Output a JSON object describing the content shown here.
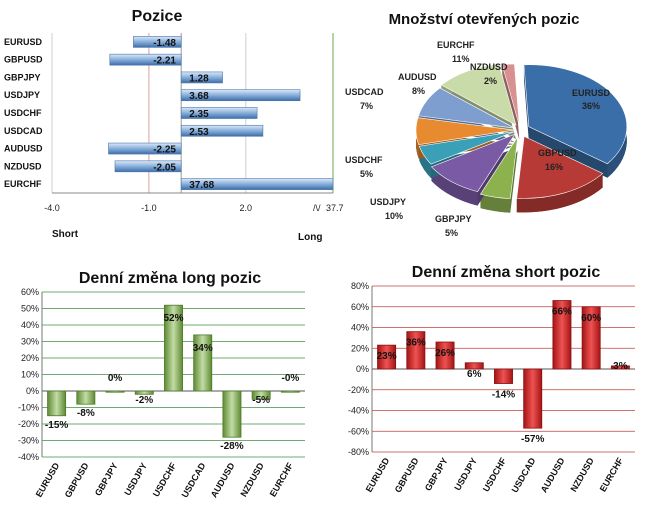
{
  "chart_data": [
    {
      "type": "bar",
      "orientation": "horizontal",
      "title": "Pozice",
      "categories": [
        "EURUSD",
        "GBPUSD",
        "GBPJPY",
        "USDJPY",
        "USDCHF",
        "USDCAD",
        "AUDUSD",
        "NZDUSD",
        "EURCHF"
      ],
      "values": [
        -1.48,
        -2.21,
        1.28,
        3.68,
        2.35,
        2.53,
        -2.25,
        -2.05,
        37.68
      ],
      "value_labels": [
        "-1.48",
        "-2.21",
        "1.28",
        "3.68",
        "2.35",
        "2.53",
        "-2.25",
        "-2.05",
        "37.68"
      ],
      "x_ticks": [
        "-4.0",
        "-1.0",
        "2.0"
      ],
      "axis_break_label": "37.7",
      "xlim": [
        -4.0,
        4.7
      ],
      "left_label": "Short",
      "right_label": "Long",
      "colors": {
        "bar": "#8fb4df",
        "bar_dark": "#3d6ea8"
      }
    },
    {
      "type": "pie",
      "title": "Množství otevřených pozic",
      "slices": [
        {
          "name": "EURUSD",
          "value": 36,
          "label": "36%",
          "color": "#3a6ea8"
        },
        {
          "name": "GBPUSD",
          "value": 16,
          "label": "16%",
          "color": "#b83a36"
        },
        {
          "name": "GBPJPY",
          "value": 5,
          "label": "5%",
          "color": "#8cb24e"
        },
        {
          "name": "USDJPY",
          "value": 10,
          "label": "10%",
          "color": "#7a5aa4"
        },
        {
          "name": "USDCHF",
          "value": 5,
          "label": "5%",
          "color": "#3aa0b8"
        },
        {
          "name": "USDCAD",
          "value": 7,
          "label": "7%",
          "color": "#e88a30"
        },
        {
          "name": "AUDUSD",
          "value": 8,
          "label": "8%",
          "color": "#7f9ed0"
        },
        {
          "name": "EURCHF",
          "value": 11,
          "label": "11%",
          "color": "#c9dba8"
        },
        {
          "name": "NZDUSD",
          "value": 2,
          "label": "2%",
          "color": "#d89090"
        }
      ]
    },
    {
      "type": "bar",
      "title": "Denní změna long pozic",
      "categories": [
        "EURUSD",
        "GBPUSD",
        "GBPJPY",
        "USDJPY",
        "USDCHF",
        "USDCAD",
        "AUDUSD",
        "NZDUSD",
        "EURCHF"
      ],
      "values": [
        -15,
        -8,
        0,
        -2,
        52,
        34,
        -28,
        -5,
        0
      ],
      "value_labels": [
        "-15%",
        "-8%",
        "0%",
        "-2%",
        "52%",
        "34%",
        "-28%",
        "-5%",
        "-0%"
      ],
      "y_ticks": [
        "-40%",
        "-30%",
        "-20%",
        "-10%",
        "0%",
        "10%",
        "20%",
        "30%",
        "40%",
        "50%",
        "60%"
      ],
      "ylim": [
        -40,
        60
      ],
      "colors": {
        "bar": "#a9c98a",
        "bar_dark": "#4f7a2a",
        "grid": "#3f8f3f"
      }
    },
    {
      "type": "bar",
      "title": "Denní změna short pozic",
      "categories": [
        "EURUSD",
        "GBPUSD",
        "GBPJPY",
        "USDJPY",
        "USDCHF",
        "USDCAD",
        "AUDUSD",
        "NZDUSD",
        "EURCHF"
      ],
      "values": [
        23,
        36,
        26,
        6,
        -14,
        -57,
        66,
        60,
        3
      ],
      "value_labels": [
        "23%",
        "36%",
        "26%",
        "6%",
        "-14%",
        "-57%",
        "66%",
        "60%",
        "3%"
      ],
      "y_ticks": [
        "-80%",
        "-60%",
        "-40%",
        "-20%",
        "0%",
        "20%",
        "40%",
        "60%",
        "80%"
      ],
      "ylim": [
        -80,
        80
      ],
      "colors": {
        "bar": "#e03a3a",
        "bar_dark": "#8a1010",
        "grid": "#c04040"
      }
    }
  ]
}
